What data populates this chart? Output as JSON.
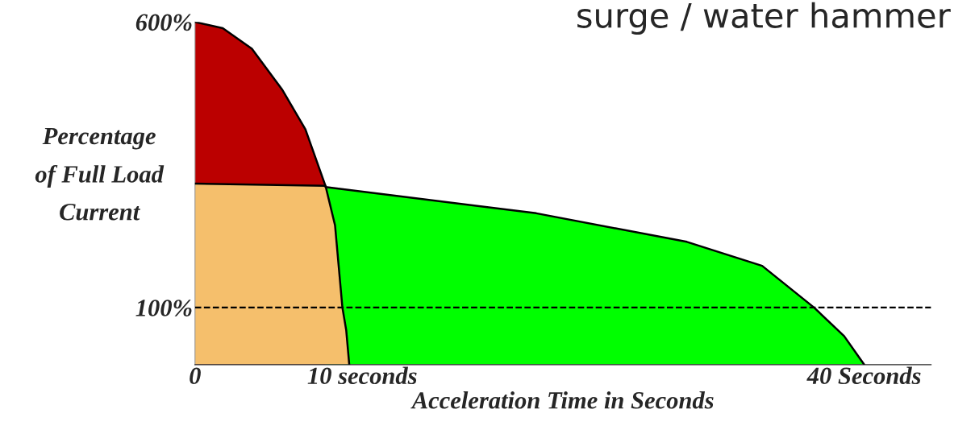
{
  "chart_data": {
    "type": "area",
    "title": "surge / water hammer",
    "xlabel": "Acceleration Time in Seconds",
    "ylabel": "Percentage\nof Full Load\nCurrent",
    "series": [
      {
        "color": "#bb0000",
        "x": [
          0,
          1.66,
          3.4,
          5.2,
          6.6,
          7.8
        ],
        "values": [
          600,
          589,
          553,
          482,
          412,
          313
        ]
      },
      {
        "color": "#00ff00",
        "x": [
          7.8,
          20.4,
          29.4,
          33.9,
          37.0,
          38.8,
          40
        ],
        "values": [
          311,
          265,
          215,
          173,
          100,
          50,
          0
        ]
      },
      {
        "color": "#f5bf6c",
        "x": [
          0,
          7.8,
          8.37,
          8.81,
          9.04,
          9.22
        ],
        "values": [
          317,
          313,
          244,
          100,
          60,
          0
        ]
      }
    ],
    "xlim": [
      0,
      44
    ],
    "xticks": [
      0,
      {
        "value": 10,
        "label": "10 seconds"
      },
      {
        "value": 40,
        "label": "40 Seconds"
      }
    ],
    "ylim": [
      0,
      600
    ],
    "yticks": [
      {
        "value": 100,
        "label": "100%"
      },
      {
        "value": 600,
        "label": "600%"
      }
    ],
    "ref_lines": [
      {
        "axis": "y",
        "value": 100,
        "line_style": "dashed",
        "color": "#000000"
      }
    ],
    "grid": false,
    "legend": false
  }
}
